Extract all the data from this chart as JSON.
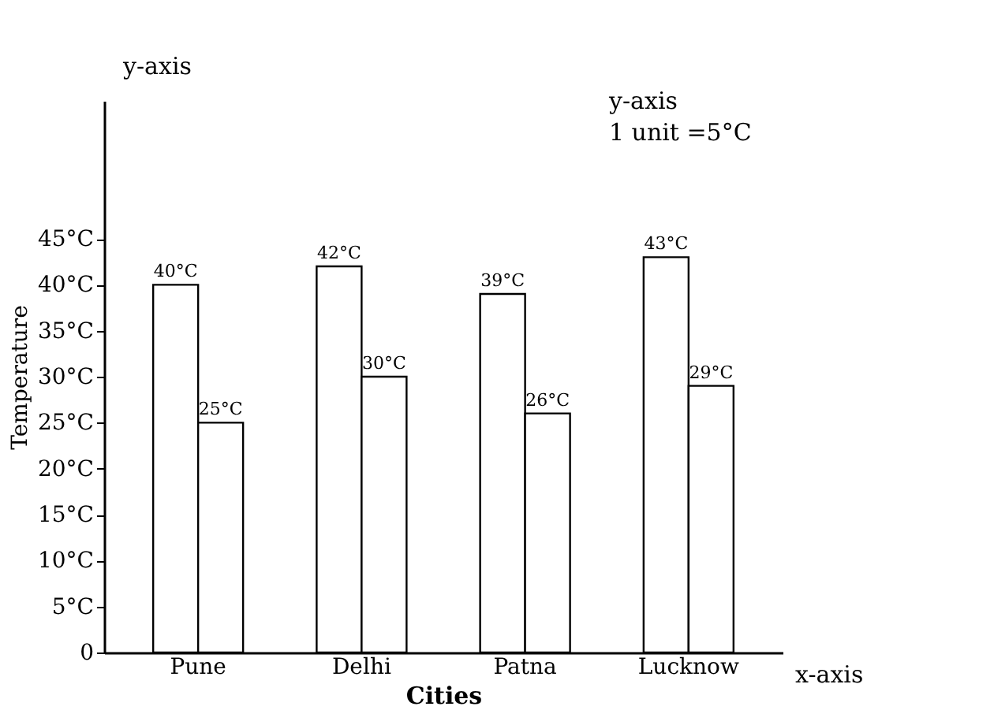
{
  "chart_data": {
    "type": "bar",
    "xlabel": "Cities",
    "ylabel": "Temperature",
    "categories": [
      "Pune",
      "Delhi",
      "Patna",
      "Lucknow"
    ],
    "series": [
      {
        "color": "#ffffff",
        "values": [
          40,
          42,
          39,
          43
        ]
      },
      {
        "color": "#ffffff",
        "values": [
          25,
          30,
          26,
          29
        ]
      }
    ],
    "value_labels": [
      [
        "40°C",
        "42°C",
        "39°C",
        "43°C"
      ],
      [
        "25°C",
        "30°C",
        "26°C",
        "29°C"
      ]
    ],
    "ylim": [
      0,
      60
    ],
    "yticks": [
      {
        "value": 0,
        "label": "0"
      },
      {
        "value": 5,
        "label": "5°C"
      },
      {
        "value": 10,
        "label": "10°C"
      },
      {
        "value": 15,
        "label": "15°C"
      },
      {
        "value": 20,
        "label": "20°C"
      },
      {
        "value": 25,
        "label": "25°C"
      },
      {
        "value": 30,
        "label": "30°C"
      },
      {
        "value": 35,
        "label": "35°C"
      },
      {
        "value": 40,
        "label": "40°C"
      },
      {
        "value": 45,
        "label": "45°C"
      }
    ],
    "grid": false,
    "annotations": [
      "y-axis",
      "y-axis",
      "1 unit =5°C",
      "x-axis"
    ]
  }
}
